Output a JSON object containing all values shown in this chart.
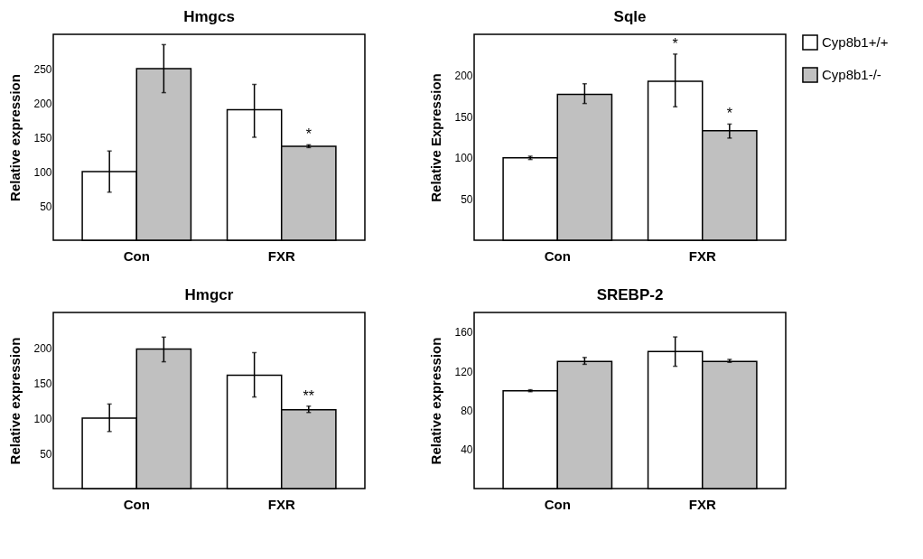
{
  "chart_data": [
    {
      "type": "bar",
      "title": "Hmgcs",
      "ylabel": "Relative expression",
      "categories": [
        "Con",
        "FXR"
      ],
      "ylim": [
        0,
        300
      ],
      "yticks": [
        50,
        100,
        150,
        200,
        250
      ],
      "series": [
        {
          "color": "#ffffff",
          "values": [
            100,
            190
          ],
          "errors": [
            30,
            [
              150,
              227
            ]
          ]
        },
        {
          "color": "#c0c0c0",
          "values": [
            250,
            137
          ],
          "errors": [
            35,
            2
          ]
        }
      ],
      "annotations": [
        {
          "text": "*",
          "x": "FXR",
          "y": 137
        }
      ]
    },
    {
      "type": "bar",
      "title": "Sqle",
      "ylabel": "Relative Expression",
      "categories": [
        "Con",
        "FXR"
      ],
      "ylim": [
        0,
        250
      ],
      "yticks": [
        50,
        100,
        150,
        200
      ],
      "legend": "right",
      "series": [
        {
          "name": "Cyp8b1+/+",
          "color": "#ffffff",
          "values": [
            100,
            193
          ],
          "errors": [
            2,
            [
              162,
              226
            ]
          ]
        },
        {
          "name": "Cyp8b1-/-",
          "color": "#c0c0c0",
          "values": [
            177,
            133
          ],
          "errors": [
            [
              166,
              190
            ],
            [
              124,
              141
            ]
          ]
        }
      ],
      "annotations": [
        {
          "text": "*",
          "x": "FXR",
          "y": 133
        },
        {
          "text": "*",
          "x": "FXR",
          "y": 193
        }
      ]
    },
    {
      "type": "bar",
      "title": "Hmgcr",
      "ylabel": "Relative expression",
      "categories": [
        "Con",
        "FXR"
      ],
      "ylim": [
        0,
        250
      ],
      "yticks": [
        50,
        100,
        150,
        200
      ],
      "series": [
        {
          "color": "#ffffff",
          "values": [
            100,
            161
          ],
          "errors": [
            [
              81,
              120
            ],
            [
              130,
              193
            ]
          ]
        },
        {
          "color": "#c0c0c0",
          "values": [
            198,
            112
          ],
          "errors": [
            [
              180,
              215
            ],
            [
              108,
              117
            ]
          ]
        }
      ],
      "annotations": [
        {
          "text": "**",
          "x": "FXR",
          "y": 112
        }
      ]
    },
    {
      "type": "bar",
      "title": "SREBP-2",
      "ylabel": "Relative expression",
      "categories": [
        "Con",
        "FXR"
      ],
      "ylim": [
        0,
        180
      ],
      "yticks": [
        40,
        80,
        120,
        160
      ],
      "series": [
        {
          "color": "#ffffff",
          "values": [
            100,
            140
          ],
          "errors": [
            1,
            [
              125,
              155
            ]
          ]
        },
        {
          "color": "#c0c0c0",
          "values": [
            130,
            130
          ],
          "errors": [
            [
              127,
              134
            ],
            [
              129,
              132
            ]
          ]
        }
      ]
    }
  ]
}
